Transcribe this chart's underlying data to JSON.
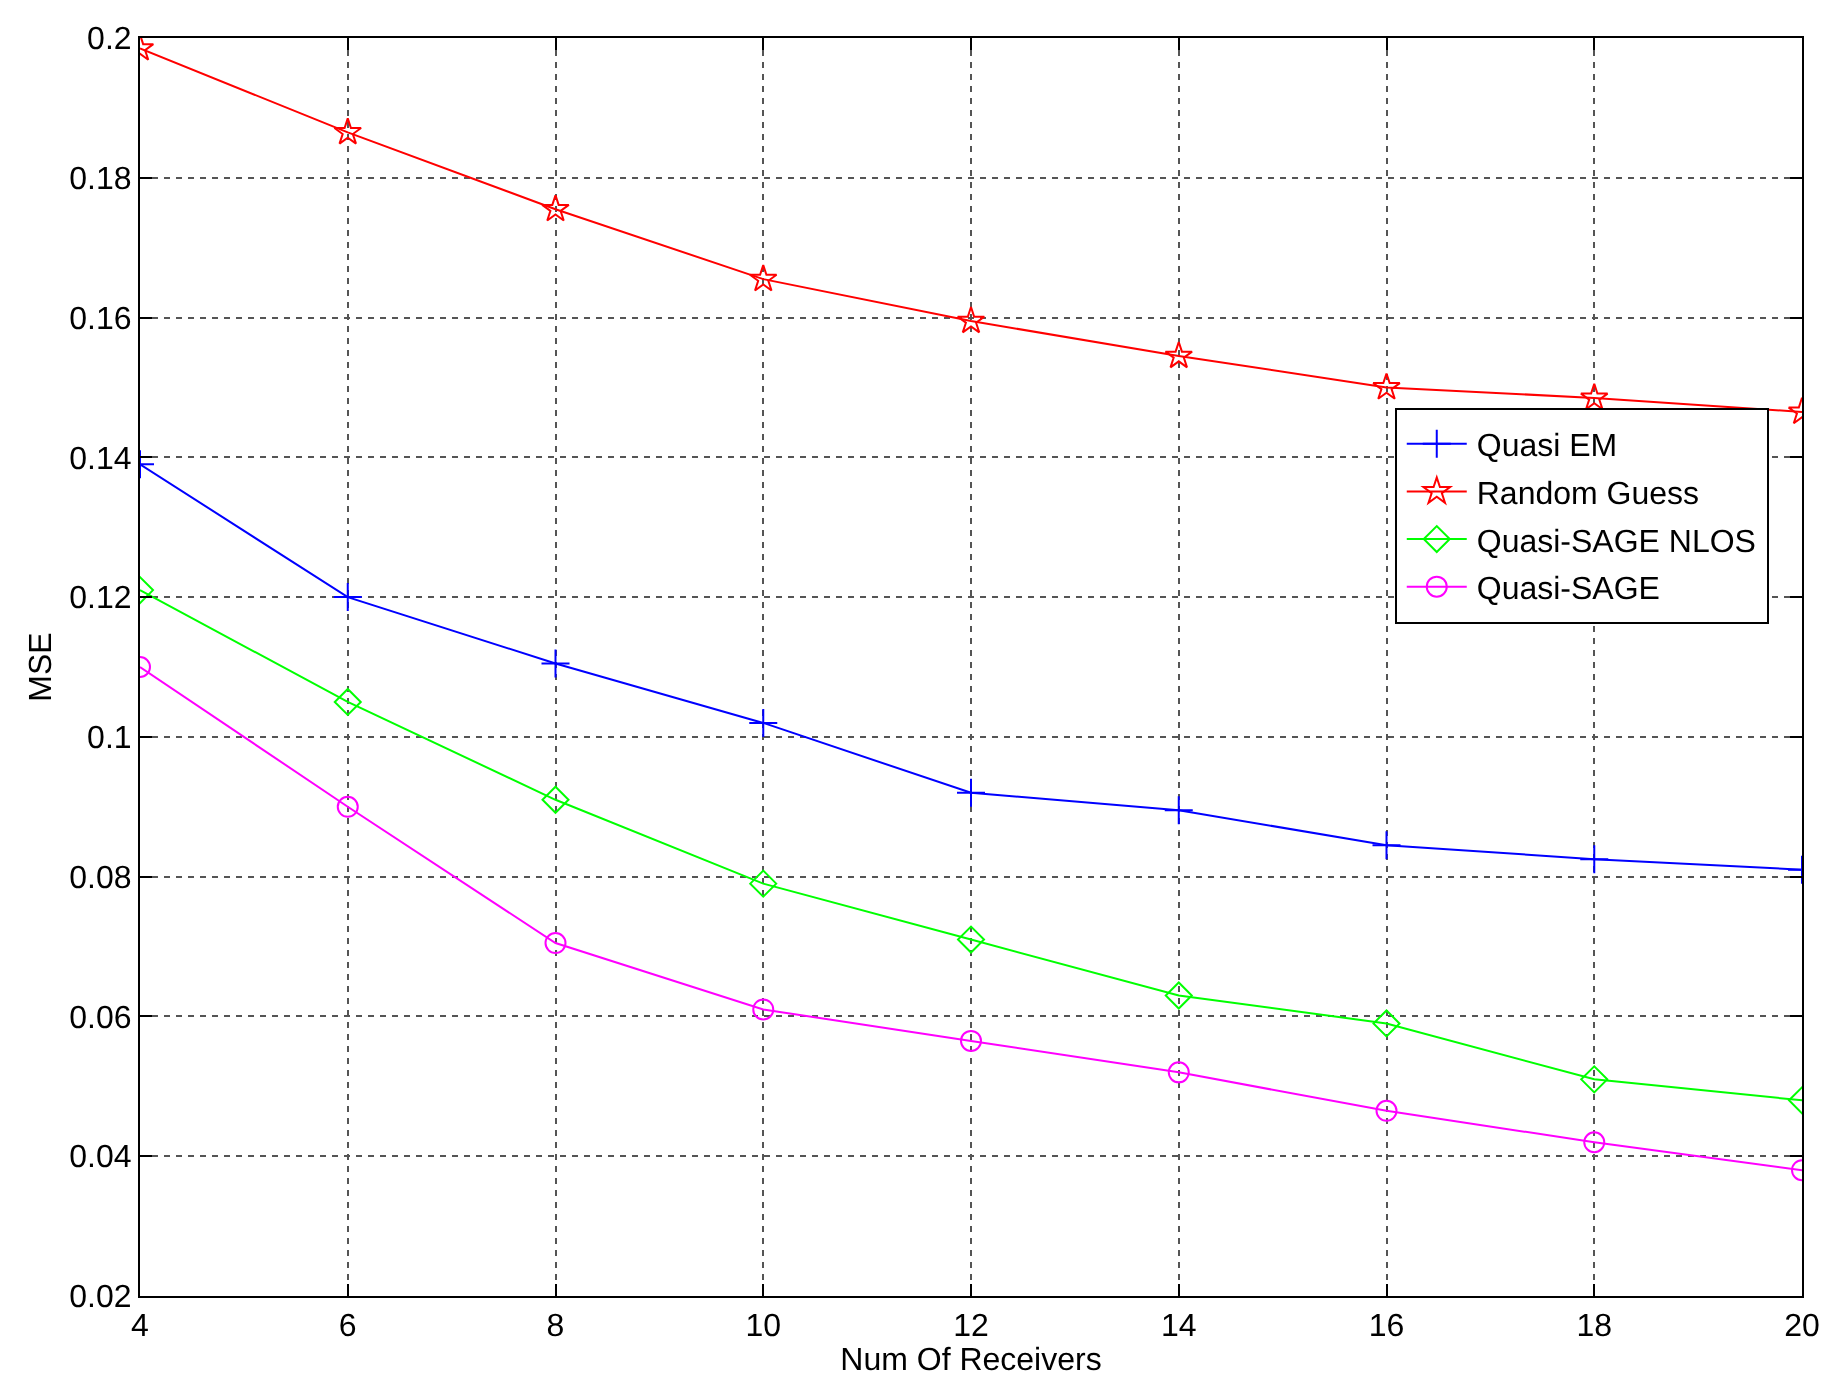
{
  "chart_data": {
    "type": "line",
    "xlabel": "Num Of Receivers",
    "ylabel": "MSE",
    "x": [
      4,
      6,
      8,
      10,
      12,
      14,
      16,
      18,
      20
    ],
    "xlim": [
      4,
      20
    ],
    "xticks": [
      4,
      6,
      8,
      10,
      12,
      14,
      16,
      18,
      20
    ],
    "ylim": [
      0.02,
      0.2
    ],
    "yticks": [
      0.02,
      0.04,
      0.06,
      0.08,
      0.1,
      0.12,
      0.14,
      0.16,
      0.18,
      0.2
    ],
    "grid": true,
    "legend": "right",
    "line_style": "solid",
    "series": [
      {
        "name": "Quasi EM",
        "color": "#0000ff",
        "marker": "cross",
        "values": [
          0.139,
          0.12,
          0.1105,
          0.102,
          0.092,
          0.0895,
          0.0845,
          0.0825,
          0.081
        ]
      },
      {
        "name": "Random Guess",
        "color": "#ff0000",
        "marker": "star",
        "values": [
          0.1985,
          0.1865,
          0.1755,
          0.1655,
          0.1595,
          0.1545,
          0.15,
          0.1485,
          0.1465
        ]
      },
      {
        "name": "Quasi-SAGE NLOS",
        "color": "#00ff00",
        "marker": "diamond",
        "values": [
          0.121,
          0.105,
          0.091,
          0.079,
          0.071,
          0.063,
          0.059,
          0.051,
          0.048
        ]
      },
      {
        "name": "Quasi-SAGE",
        "color": "#ff00ff",
        "marker": "circle",
        "values": [
          0.11,
          0.09,
          0.0705,
          0.061,
          0.0565,
          0.052,
          0.0465,
          0.042,
          0.038
        ]
      }
    ]
  }
}
